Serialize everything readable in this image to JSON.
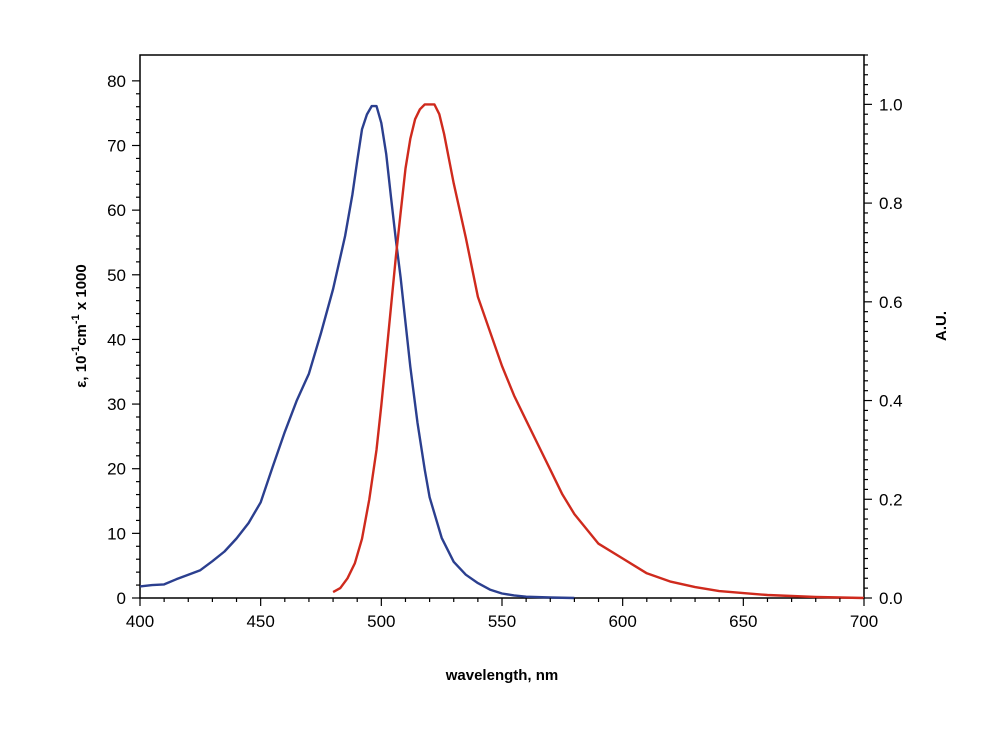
{
  "chart_data": {
    "type": "line",
    "xlabel": "wavelength, nm",
    "ylabel_left": {
      "prefix": "ε, 10",
      "sup1": "-1",
      "mid": "cm",
      "sup2": "-1",
      "suffix": " x 1000"
    },
    "ylabel_right": "A.U.",
    "xlim": [
      400,
      700
    ],
    "ylim_left": [
      0,
      84
    ],
    "ylim_right": [
      0,
      1.1
    ],
    "x_ticks": [
      "400",
      "450",
      "500",
      "550",
      "600",
      "650",
      "700"
    ],
    "y_left_ticks": [
      "0",
      "10",
      "20",
      "30",
      "40",
      "50",
      "60",
      "70",
      "80"
    ],
    "y_right_ticks": [
      "0.0",
      "0.2",
      "0.4",
      "0.6",
      "0.8",
      "1.0"
    ],
    "grid": false,
    "series": [
      {
        "axis": "left",
        "color": "#2b3f8f",
        "x": [
          400,
          405,
          410,
          415,
          420,
          425,
          430,
          435,
          440,
          445,
          450,
          455,
          460,
          465,
          470,
          475,
          480,
          485,
          488,
          490,
          492,
          494,
          496,
          498,
          500,
          502,
          504,
          506,
          508,
          510,
          512,
          515,
          518,
          520,
          525,
          530,
          535,
          540,
          545,
          550,
          555,
          560,
          570,
          580
        ],
        "y": [
          1.8,
          2.0,
          2.1,
          2.9,
          3.6,
          4.3,
          5.7,
          7.2,
          9.2,
          11.6,
          14.8,
          20.3,
          25.7,
          30.6,
          34.7,
          41.0,
          47.8,
          56.0,
          62.4,
          67.6,
          72.5,
          74.8,
          76.1,
          76.1,
          73.5,
          68.7,
          62.0,
          55.5,
          49.6,
          42.6,
          35.8,
          27.1,
          19.8,
          15.6,
          9.3,
          5.6,
          3.6,
          2.3,
          1.3,
          0.7,
          0.4,
          0.2,
          0.08,
          0.0
        ]
      },
      {
        "axis": "right",
        "color": "#cf2a1d",
        "x": [
          480,
          483,
          486,
          489,
          492,
          495,
          498,
          500,
          502,
          504,
          506,
          508,
          510,
          512,
          514,
          516,
          518,
          520,
          522,
          524,
          526,
          528,
          530,
          535,
          540,
          545,
          550,
          555,
          560,
          565,
          570,
          575,
          580,
          590,
          600,
          610,
          620,
          630,
          640,
          650,
          660,
          670,
          680,
          690,
          700
        ],
        "y": [
          0.012,
          0.02,
          0.04,
          0.07,
          0.12,
          0.2,
          0.3,
          0.39,
          0.49,
          0.59,
          0.69,
          0.78,
          0.87,
          0.93,
          0.97,
          0.99,
          1.0,
          1.0,
          1.0,
          0.98,
          0.94,
          0.89,
          0.84,
          0.73,
          0.61,
          0.54,
          0.47,
          0.41,
          0.36,
          0.31,
          0.26,
          0.21,
          0.17,
          0.11,
          0.08,
          0.05,
          0.033,
          0.022,
          0.014,
          0.01,
          0.006,
          0.004,
          0.002,
          0.001,
          0.0
        ]
      }
    ]
  }
}
